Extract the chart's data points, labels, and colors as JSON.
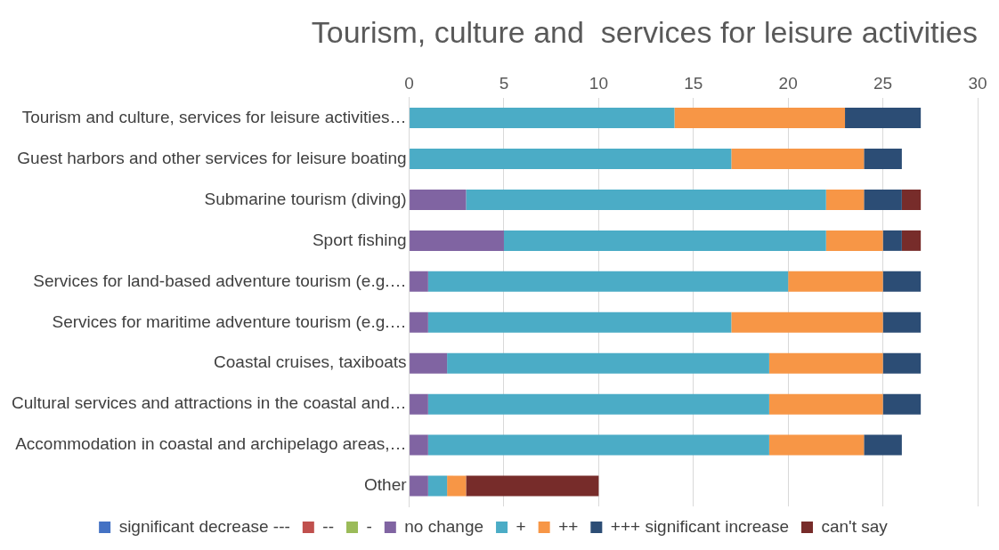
{
  "chart_data": {
    "type": "bar",
    "orientation": "horizontal",
    "stacked": true,
    "title": "Tourism, culture and  services for leisure activities",
    "categories": [
      "Tourism and culture, services for leisure activities…",
      "Guest harbors and other services for leisure boating",
      "Submarine tourism (diving)",
      "Sport fishing",
      "Services for land-based adventure tourism (e.g.…",
      "Services for maritime adventure tourism (e.g.…",
      "Coastal cruises, taxiboats",
      "Cultural services and attractions in the coastal and…",
      "Accommodation in coastal and archipelago areas,…",
      "Other"
    ],
    "series": [
      {
        "name": "significant decrease ---",
        "color": "#4472c4",
        "values": [
          0,
          0,
          0,
          0,
          0,
          0,
          0,
          0,
          0,
          0
        ]
      },
      {
        "name": "--",
        "color": "#c0504d",
        "values": [
          0,
          0,
          0,
          0,
          0,
          0,
          0,
          0,
          0,
          0
        ]
      },
      {
        "name": "-",
        "color": "#9bbb59",
        "values": [
          0,
          0,
          0,
          0,
          0,
          0,
          0,
          0,
          0,
          0
        ]
      },
      {
        "name": "no change",
        "color": "#8064a2",
        "values": [
          0,
          0,
          3,
          5,
          1,
          1,
          2,
          1,
          1,
          1
        ]
      },
      {
        "name": "+",
        "color": "#4bacc6",
        "values": [
          14,
          17,
          19,
          17,
          19,
          16,
          17,
          18,
          18,
          1
        ]
      },
      {
        "name": "++",
        "color": "#f79646",
        "values": [
          9,
          7,
          2,
          3,
          5,
          8,
          6,
          6,
          5,
          1
        ]
      },
      {
        "name": "+++ significant increase",
        "color": "#2c4d75",
        "values": [
          4,
          2,
          2,
          1,
          2,
          2,
          2,
          2,
          2,
          0
        ]
      },
      {
        "name": "can't say",
        "color": "#772c2a",
        "values": [
          0,
          0,
          1,
          1,
          0,
          0,
          0,
          0,
          0,
          7
        ]
      }
    ],
    "xlim": [
      0,
      30
    ],
    "xticks": [
      0,
      5,
      10,
      15,
      20,
      25,
      30
    ],
    "grid": "x",
    "legend": "bottom"
  }
}
